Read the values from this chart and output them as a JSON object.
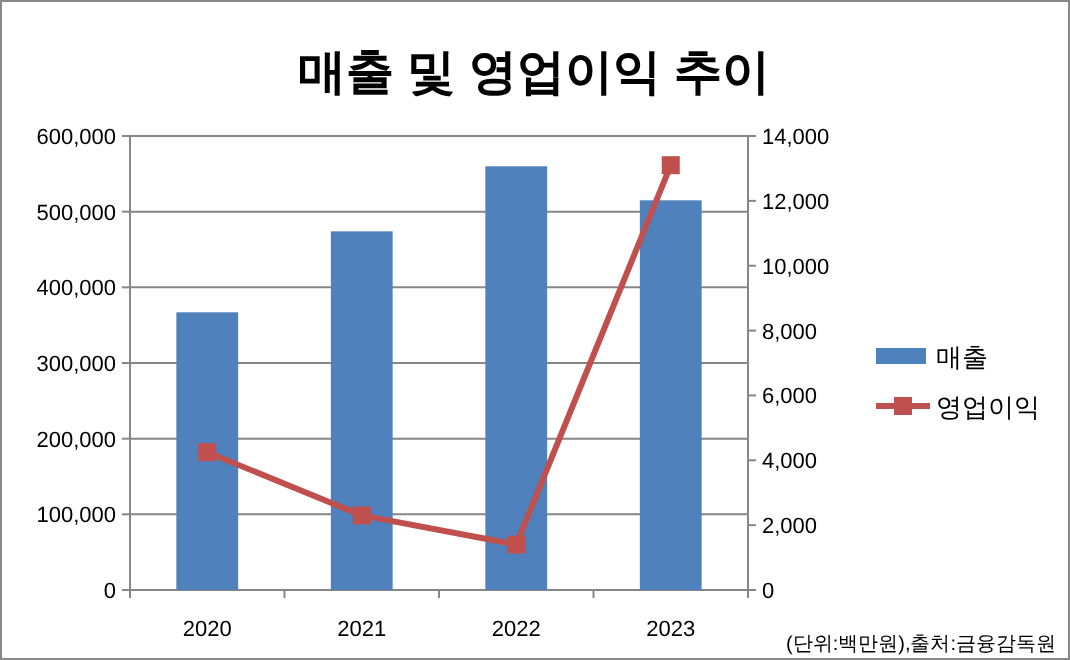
{
  "chart_data": {
    "type": "bar",
    "title": "매출 및 영업이익 추이",
    "categories": [
      "2020",
      "2021",
      "2022",
      "2023"
    ],
    "series": [
      {
        "name": "매출",
        "color": "#4f81bd",
        "values": [
          367000,
          474000,
          560000,
          515000
        ]
      },
      {
        "name": "영업이익",
        "type": "line",
        "axis": "y2",
        "color": "#c0504d",
        "marker": "square",
        "values": [
          4250,
          2300,
          1400,
          13100
        ]
      }
    ],
    "ylim": [
      0,
      600000
    ],
    "yticks": [
      {
        "value": 0,
        "label": "0"
      },
      {
        "value": 100000,
        "label": "100,000"
      },
      {
        "value": 200000,
        "label": "200,000"
      },
      {
        "value": 300000,
        "label": "300,000"
      },
      {
        "value": 400000,
        "label": "400,000"
      },
      {
        "value": 500000,
        "label": "500,000"
      },
      {
        "value": 600000,
        "label": "600,000"
      }
    ],
    "y2lim": [
      0,
      14000
    ],
    "y2ticks": [
      {
        "value": 0,
        "label": "0"
      },
      {
        "value": 2000,
        "label": "2,000"
      },
      {
        "value": 4000,
        "label": "4,000"
      },
      {
        "value": 6000,
        "label": "6,000"
      },
      {
        "value": 8000,
        "label": "8,000"
      },
      {
        "value": 10000,
        "label": "10,000"
      },
      {
        "value": 12000,
        "label": "12,000"
      },
      {
        "value": 14000,
        "label": "14,000"
      }
    ],
    "grid": "y",
    "legend": "right",
    "annotations": [
      "(단위:백만원),출처:금융감독원"
    ]
  }
}
